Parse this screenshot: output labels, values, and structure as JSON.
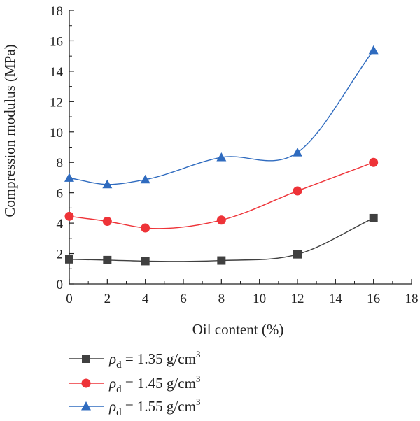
{
  "chart_data": {
    "type": "line",
    "xlabel": "Oil content (%)",
    "ylabel": "Compression modulus (MPa)",
    "xlim": [
      0,
      18
    ],
    "ylim": [
      0,
      18
    ],
    "xticks": [
      0,
      2,
      4,
      6,
      8,
      10,
      12,
      14,
      16,
      18
    ],
    "yticks": [
      0,
      2,
      4,
      6,
      8,
      10,
      12,
      14,
      16,
      18
    ],
    "grid": false,
    "legend_position": "bottom-left",
    "x": [
      0,
      2,
      4,
      8,
      12,
      16
    ],
    "series": [
      {
        "name_prefix": "ρ",
        "name_sub": "d",
        "name_text": " = 1.35 g/cm",
        "name_sup": "3",
        "marker": "square",
        "color": "#404040",
        "values": [
          1.62,
          1.57,
          1.5,
          1.54,
          1.95,
          4.33
        ]
      },
      {
        "name_prefix": "ρ",
        "name_sub": "d",
        "name_text": " = 1.45 g/cm",
        "name_sup": "3",
        "marker": "circle",
        "color": "#ee3338",
        "values": [
          4.45,
          4.12,
          3.68,
          4.2,
          6.12,
          8.0
        ]
      },
      {
        "name_prefix": "ρ",
        "name_sub": "d",
        "name_text": " = 1.55 g/cm",
        "name_sup": "3",
        "marker": "triangle",
        "color": "#2f6bbf",
        "values": [
          6.98,
          6.55,
          6.87,
          8.33,
          8.65,
          15.38
        ]
      }
    ]
  }
}
